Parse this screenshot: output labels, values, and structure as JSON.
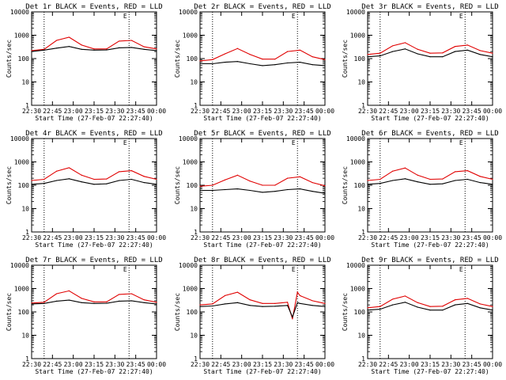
{
  "figure": {
    "x_tick_labels": [
      "22:30",
      "22:45",
      "23:00",
      "23:15",
      "23:30",
      "23:45",
      "00:00"
    ],
    "xlabel": "Start Time (27-Feb-07 22:27:40)",
    "ylabel": "Counts/sec",
    "colors": {
      "black_series": "#000000",
      "red_series": "#e00000",
      "frame": "#000000"
    }
  },
  "chart_data": [
    {
      "type": "line",
      "title": "Det 1r BLACK = Events, RED = LLD",
      "marker": "E",
      "x_hours": [
        0,
        0.25,
        0.5,
        0.75,
        1.0,
        1.25,
        1.5,
        1.75,
        2.0,
        2.25,
        2.5
      ],
      "xlim": [
        0,
        2.5
      ],
      "ylim": [
        1,
        10000
      ],
      "yscale": "log",
      "y_tick_labels": [
        "1",
        "10",
        "100",
        "1000",
        "10000"
      ],
      "dotted_vlines_hours": [
        0.25,
        1.95
      ],
      "series": [
        {
          "color": "red",
          "values": [
            220,
            250,
            600,
            820,
            380,
            260,
            260,
            560,
            600,
            320,
            260
          ]
        },
        {
          "color": "black",
          "values": [
            200,
            230,
            280,
            330,
            250,
            230,
            235,
            290,
            300,
            250,
            220
          ]
        }
      ]
    },
    {
      "type": "line",
      "title": "Det 2r BLACK = Events, RED = LLD",
      "marker": "E",
      "x_hours": [
        0,
        0.25,
        0.5,
        0.75,
        1.0,
        1.25,
        1.5,
        1.75,
        2.0,
        2.25,
        2.5
      ],
      "xlim": [
        0,
        2.5
      ],
      "ylim": [
        1,
        10000
      ],
      "yscale": "log",
      "y_tick_labels": [
        "1",
        "10",
        "100",
        "1000",
        "10000"
      ],
      "dotted_vlines_hours": [
        0.25,
        1.95
      ],
      "series": [
        {
          "color": "red",
          "values": [
            80,
            90,
            160,
            270,
            150,
            95,
            95,
            200,
            230,
            120,
            90
          ]
        },
        {
          "color": "black",
          "values": [
            60,
            60,
            70,
            75,
            60,
            50,
            55,
            65,
            70,
            55,
            50
          ]
        }
      ]
    },
    {
      "type": "line",
      "title": "Det 3r BLACK = Events, RED = LLD",
      "marker": "E",
      "x_hours": [
        0,
        0.25,
        0.5,
        0.75,
        1.0,
        1.25,
        1.5,
        1.75,
        2.0,
        2.25,
        2.5
      ],
      "xlim": [
        0,
        2.5
      ],
      "ylim": [
        1,
        10000
      ],
      "yscale": "log",
      "y_tick_labels": [
        "1",
        "10",
        "100",
        "1000",
        "10000"
      ],
      "dotted_vlines_hours": [
        0.25,
        1.95
      ],
      "series": [
        {
          "color": "red",
          "values": [
            150,
            170,
            350,
            480,
            250,
            170,
            175,
            330,
            380,
            220,
            170
          ]
        },
        {
          "color": "black",
          "values": [
            120,
            130,
            200,
            260,
            160,
            120,
            120,
            200,
            230,
            150,
            120
          ]
        }
      ]
    },
    {
      "type": "line",
      "title": "Det 4r BLACK = Events, RED = LLD",
      "marker": "E",
      "x_hours": [
        0,
        0.25,
        0.5,
        0.75,
        1.0,
        1.25,
        1.5,
        1.75,
        2.0,
        2.25,
        2.5
      ],
      "xlim": [
        0,
        2.5
      ],
      "ylim": [
        1,
        10000
      ],
      "yscale": "log",
      "y_tick_labels": [
        "1",
        "10",
        "100",
        "1000",
        "10000"
      ],
      "dotted_vlines_hours": [
        0.25,
        1.95
      ],
      "series": [
        {
          "color": "red",
          "values": [
            160,
            180,
            400,
            560,
            270,
            180,
            185,
            380,
            420,
            240,
            180
          ]
        },
        {
          "color": "black",
          "values": [
            110,
            120,
            160,
            190,
            140,
            110,
            115,
            160,
            180,
            130,
            110
          ]
        }
      ]
    },
    {
      "type": "line",
      "title": "Det 5r BLACK = Events, RED = LLD",
      "marker": "E",
      "x_hours": [
        0,
        0.25,
        0.5,
        0.75,
        1.0,
        1.25,
        1.5,
        1.75,
        2.0,
        2.25,
        2.5
      ],
      "xlim": [
        0,
        2.5
      ],
      "ylim": [
        1,
        10000
      ],
      "yscale": "log",
      "y_tick_labels": [
        "1",
        "10",
        "100",
        "1000",
        "10000"
      ],
      "dotted_vlines_hours": [
        0.25,
        1.95
      ],
      "series": [
        {
          "color": "red",
          "values": [
            90,
            100,
            170,
            270,
            150,
            100,
            100,
            200,
            230,
            130,
            95
          ]
        },
        {
          "color": "black",
          "values": [
            60,
            60,
            65,
            70,
            60,
            50,
            55,
            65,
            70,
            55,
            45
          ]
        }
      ]
    },
    {
      "type": "line",
      "title": "Det 6r BLACK = Events, RED = LLD",
      "marker": "E",
      "x_hours": [
        0,
        0.25,
        0.5,
        0.75,
        1.0,
        1.25,
        1.5,
        1.75,
        2.0,
        2.25,
        2.5
      ],
      "xlim": [
        0,
        2.5
      ],
      "ylim": [
        1,
        10000
      ],
      "yscale": "log",
      "y_tick_labels": [
        "1",
        "10",
        "100",
        "1000",
        "10000"
      ],
      "dotted_vlines_hours": [
        0.25,
        1.95
      ],
      "series": [
        {
          "color": "red",
          "values": [
            160,
            180,
            400,
            550,
            270,
            180,
            185,
            380,
            420,
            240,
            180
          ]
        },
        {
          "color": "black",
          "values": [
            110,
            120,
            160,
            190,
            140,
            110,
            115,
            160,
            180,
            130,
            110
          ]
        }
      ]
    },
    {
      "type": "line",
      "title": "Det 7r BLACK = Events, RED = LLD",
      "marker": "E",
      "x_hours": [
        0,
        0.25,
        0.5,
        0.75,
        1.0,
        1.25,
        1.5,
        1.75,
        2.0,
        2.25,
        2.5
      ],
      "xlim": [
        0,
        2.5
      ],
      "ylim": [
        1,
        10000
      ],
      "yscale": "log",
      "y_tick_labels": [
        "1",
        "10",
        "100",
        "1000",
        "10000"
      ],
      "dotted_vlines_hours": [
        0.25,
        1.95
      ],
      "series": [
        {
          "color": "red",
          "values": [
            240,
            260,
            600,
            800,
            380,
            270,
            270,
            560,
            600,
            330,
            260
          ]
        },
        {
          "color": "black",
          "values": [
            220,
            230,
            290,
            320,
            250,
            230,
            235,
            290,
            300,
            250,
            220
          ]
        }
      ]
    },
    {
      "type": "line",
      "title": "Det 8r BLACK = Events, RED = LLD",
      "marker": "E",
      "x_hours": [
        0,
        0.25,
        0.5,
        0.75,
        1.0,
        1.25,
        1.5,
        1.75,
        1.85,
        1.95,
        2.0,
        2.25,
        2.5
      ],
      "xlim": [
        0,
        2.5
      ],
      "ylim": [
        1,
        10000
      ],
      "yscale": "log",
      "y_tick_labels": [
        "1",
        "10",
        "100",
        "1000",
        "10000"
      ],
      "dotted_vlines_hours": [
        0.25,
        1.95
      ],
      "series": [
        {
          "color": "red",
          "values": [
            200,
            220,
            500,
            700,
            330,
            230,
            230,
            260,
            50,
            700,
            500,
            300,
            230
          ]
        },
        {
          "color": "black",
          "values": [
            170,
            180,
            220,
            250,
            190,
            170,
            175,
            190,
            60,
            250,
            230,
            190,
            170
          ]
        }
      ]
    },
    {
      "type": "line",
      "title": "Det 9r BLACK = Events, RED = LLD",
      "marker": "E",
      "x_hours": [
        0,
        0.25,
        0.5,
        0.75,
        1.0,
        1.25,
        1.5,
        1.75,
        2.0,
        2.25,
        2.5
      ],
      "xlim": [
        0,
        2.5
      ],
      "ylim": [
        1,
        10000
      ],
      "yscale": "log",
      "y_tick_labels": [
        "1",
        "10",
        "100",
        "1000",
        "10000"
      ],
      "dotted_vlines_hours": [
        0.25,
        1.95
      ],
      "series": [
        {
          "color": "red",
          "values": [
            150,
            170,
            350,
            480,
            250,
            170,
            175,
            330,
            380,
            220,
            170
          ]
        },
        {
          "color": "black",
          "values": [
            120,
            130,
            200,
            260,
            160,
            120,
            120,
            200,
            230,
            150,
            120
          ]
        }
      ]
    }
  ]
}
